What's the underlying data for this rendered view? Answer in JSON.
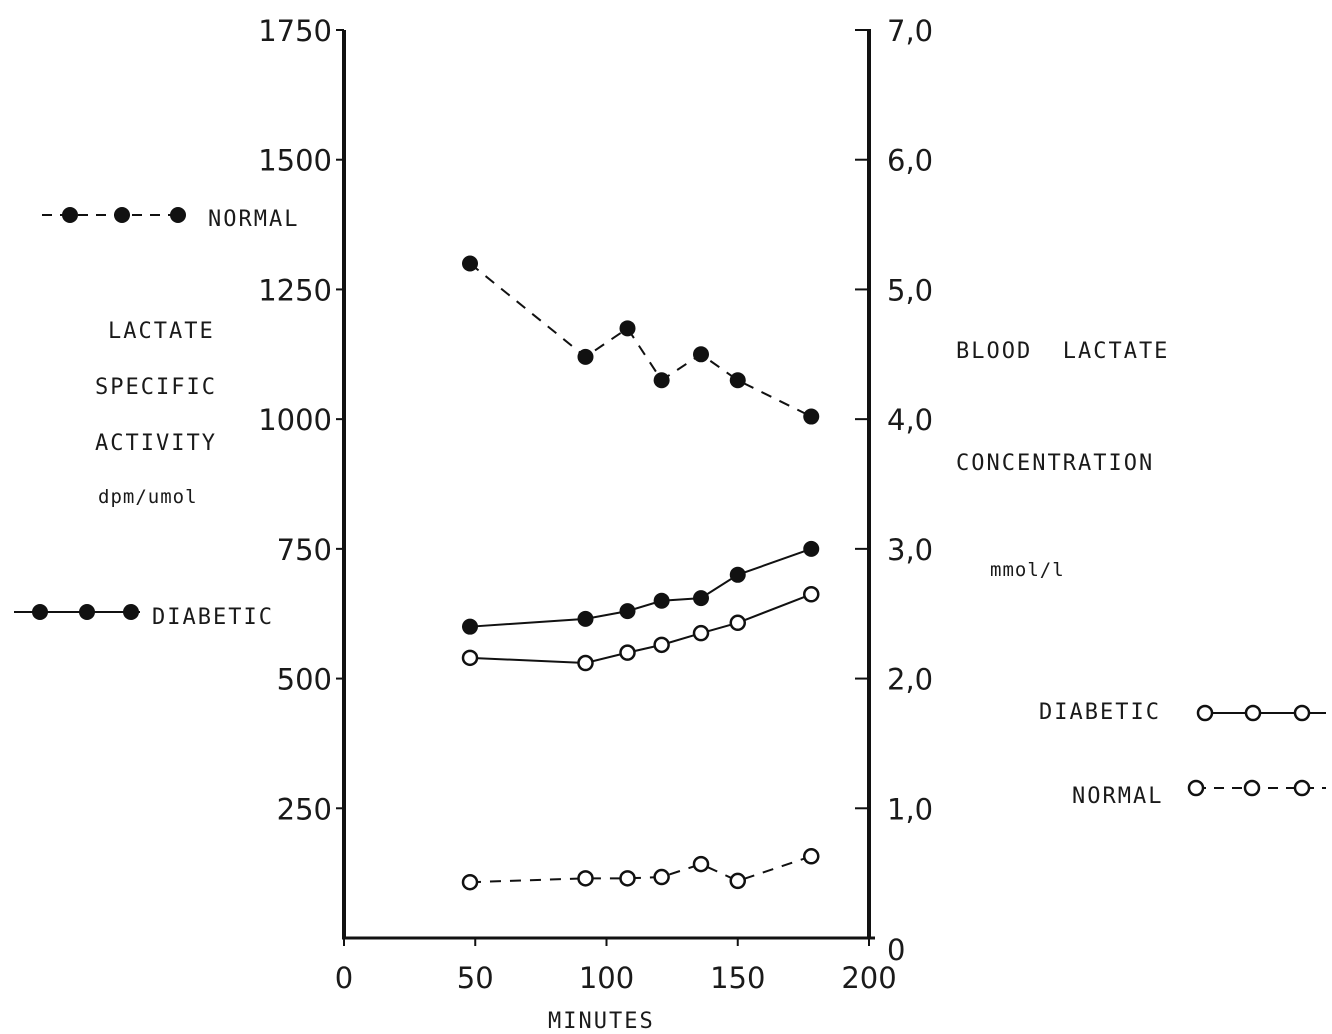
{
  "chart_data": {
    "type": "line",
    "xlabel": "MINUTES",
    "xlim": [
      0,
      200
    ],
    "x_ticks": [
      "0",
      "50",
      "100",
      "150",
      "200"
    ],
    "y_left": {
      "label_lines": [
        "LACTATE",
        "SPECIFIC",
        "ACTIVITY",
        "dpm/umol"
      ],
      "ylim": [
        0,
        1750
      ],
      "ticks": [
        "250",
        "500",
        "750",
        "1000",
        "1250",
        "1500",
        "1750"
      ]
    },
    "y_right": {
      "label_lines": [
        "BLOOD  LACTATE",
        "CONCENTRATION",
        "mmol/l"
      ],
      "ylim": [
        0,
        7.0
      ],
      "ticks": [
        "0",
        "1,0",
        "2,0",
        "3,0",
        "4,0",
        "5,0",
        "6,0",
        "7,0"
      ]
    },
    "series": [
      {
        "name": "NORMAL",
        "axis": "left",
        "marker": "filled",
        "line": "dashed",
        "x": [
          48,
          92,
          108,
          121,
          136,
          150,
          178
        ],
        "y": [
          1300,
          1120,
          1175,
          1075,
          1125,
          1075,
          1005
        ]
      },
      {
        "name": "DIABETIC",
        "axis": "left",
        "marker": "filled",
        "line": "solid",
        "x": [
          48,
          92,
          108,
          121,
          136,
          150,
          178
        ],
        "y": [
          600,
          615,
          630,
          650,
          655,
          700,
          750
        ]
      },
      {
        "name": "DIABETIC",
        "axis": "right",
        "marker": "open",
        "line": "solid",
        "x": [
          48,
          92,
          108,
          121,
          136,
          150,
          178
        ],
        "y": [
          2.16,
          2.12,
          2.2,
          2.26,
          2.35,
          2.43,
          2.65
        ]
      },
      {
        "name": "NORMAL",
        "axis": "right",
        "marker": "open",
        "line": "dashed",
        "x": [
          48,
          92,
          108,
          121,
          136,
          150,
          178
        ],
        "y": [
          0.43,
          0.46,
          0.46,
          0.47,
          0.57,
          0.44,
          0.63
        ]
      }
    ],
    "legend": [
      {
        "label": "NORMAL",
        "marker": "filled",
        "line": "dashed",
        "placement": "left"
      },
      {
        "label": "DIABETIC",
        "marker": "filled",
        "line": "solid",
        "placement": "left"
      },
      {
        "label": "DIABETIC",
        "marker": "open",
        "line": "solid",
        "placement": "right"
      },
      {
        "label": "NORMAL",
        "marker": "open",
        "line": "dashed",
        "placement": "right"
      }
    ]
  }
}
